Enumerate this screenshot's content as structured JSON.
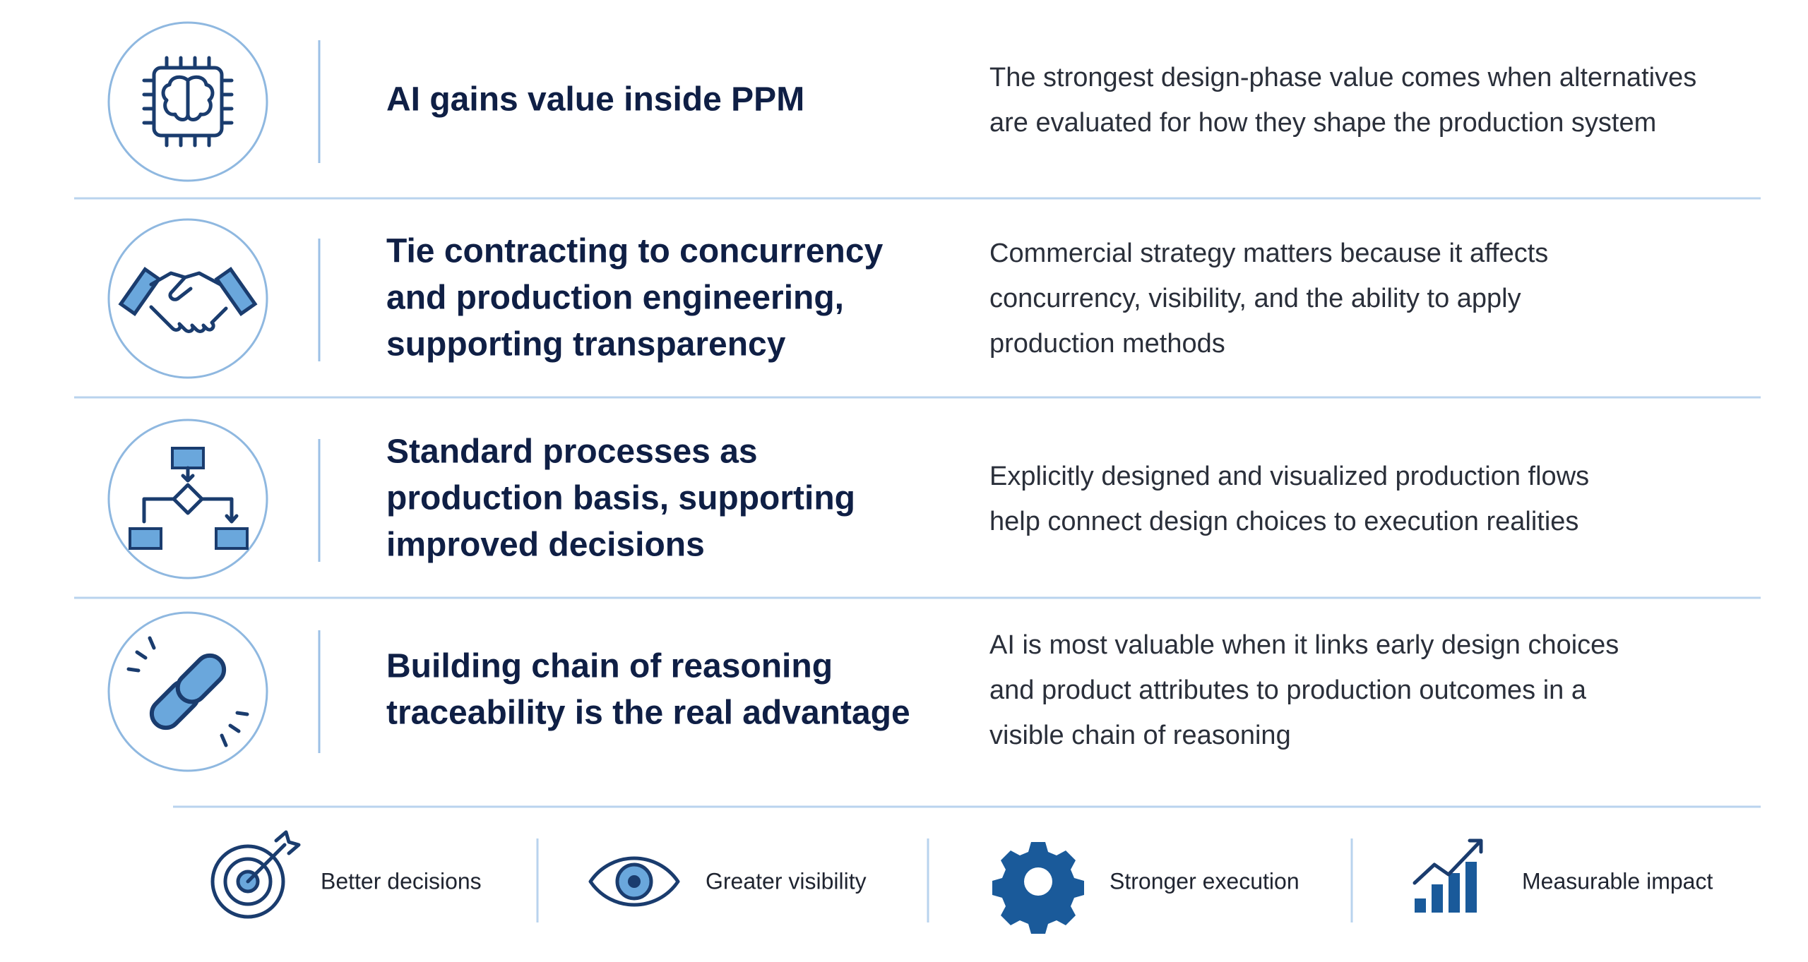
{
  "rows": [
    {
      "title": [
        "AI gains value inside PPM"
      ],
      "description": [
        "The strongest design-phase value comes when alternatives",
        "are evaluated for how they shape the production system"
      ]
    },
    {
      "title": [
        "Tie contracting to concurrency",
        "and production engineering,",
        "supporting transparency"
      ],
      "description": [
        "Commercial strategy matters because it affects",
        "concurrency, visibility, and the ability to apply",
        "production methods"
      ]
    },
    {
      "title": [
        "Standard processes as",
        "production basis, supporting",
        "improved decisions"
      ],
      "description": [
        "Explicitly designed and visualized production flows",
        "help connect design choices to execution realities"
      ]
    },
    {
      "title": [
        "Building chain of reasoning",
        "traceability is the real advantage"
      ],
      "description": [
        "AI is most valuable when it links early design choices",
        "and product attributes to production outcomes in a",
        "visible chain of reasoning"
      ]
    }
  ],
  "footer": [
    "Better decisions",
    "Greater visibility",
    "Stronger execution",
    "Measurable impact"
  ]
}
